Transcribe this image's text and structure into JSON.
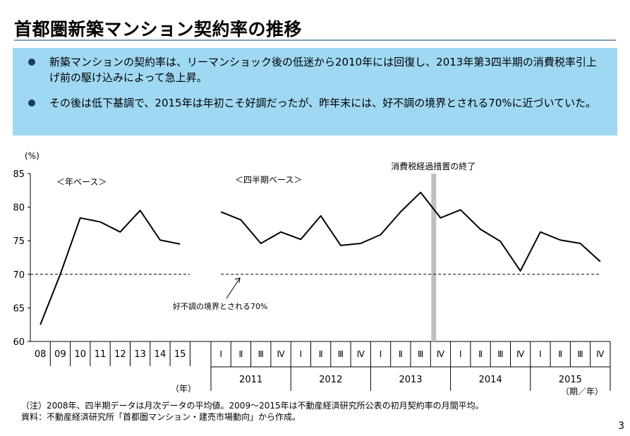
{
  "page": {
    "title": "首都圏新築マンション契約率の推移",
    "bullets": [
      "新築マンションの契約率は、リーマンショック後の低迷から2010年には回復し、2013年第3四半期の消費税率引上げ前の駆け込みによって急上昇。",
      "その後は低下基調で、2015年は年初こそ好調だったが、昨年末には、好不調の境界とされる70%に近づいていた。"
    ],
    "note": "（注）2008年、四半期データは月次データの平均値。2009～2015年は不動産経済研究所公表の初月契約率の月間平均。",
    "source": "資料：不動産経済研究所「首都圏マンション・建売市場動向」から作成。",
    "page_number": "3"
  },
  "chart_data": {
    "type": "line",
    "y_unit": "(%)",
    "ylim": [
      60,
      85
    ],
    "y_ticks": [
      60,
      65,
      70,
      75,
      80,
      85
    ],
    "threshold": 70,
    "threshold_label": "好不調の境界とされる70%",
    "annotation": "消費税経過措置の終了",
    "annual": {
      "label": "＜年ベース＞",
      "x_unit": "（年）",
      "categories": [
        "08",
        "09",
        "10",
        "11",
        "12",
        "13",
        "14",
        "15"
      ],
      "values": [
        62.5,
        70.0,
        78.4,
        77.8,
        76.3,
        79.5,
        75.1,
        74.5
      ]
    },
    "quarterly": {
      "label": "＜四半期ベース＞",
      "x_unit": "（期／年）",
      "quarters": [
        "Ⅰ",
        "Ⅱ",
        "Ⅲ",
        "Ⅳ"
      ],
      "years": [
        "2011",
        "2012",
        "2013",
        "2014",
        "2015"
      ],
      "values": [
        79.3,
        78.1,
        74.6,
        76.3,
        75.2,
        78.7,
        74.3,
        74.6,
        75.9,
        79.3,
        82.2,
        78.4,
        79.6,
        76.7,
        74.9,
        70.5,
        76.3,
        75.1,
        74.6,
        71.9
      ],
      "marker_after_index": 10
    }
  }
}
